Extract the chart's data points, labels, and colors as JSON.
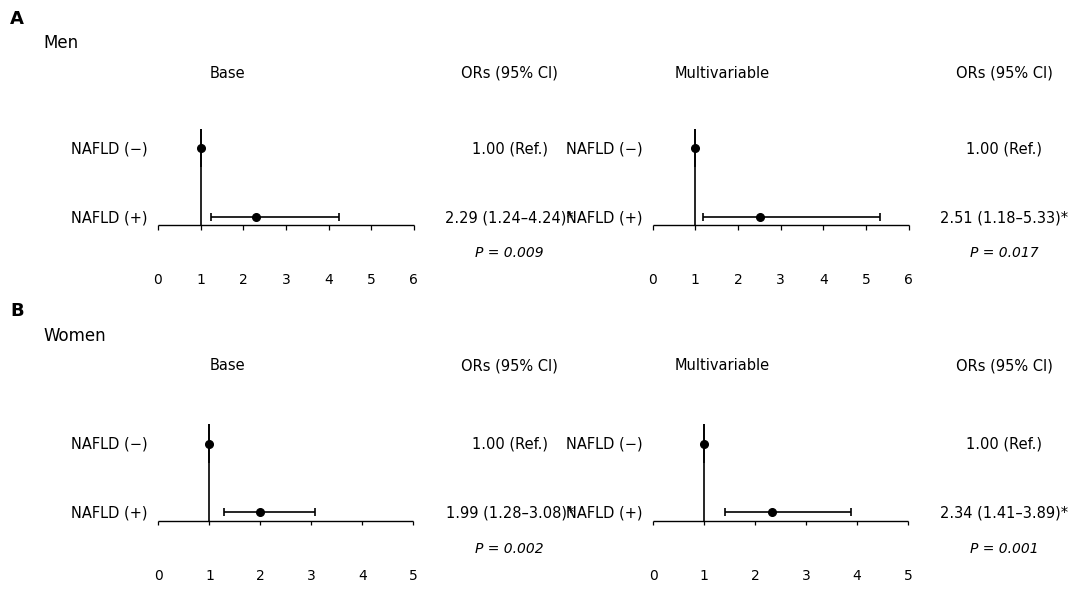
{
  "panels": [
    {
      "panel_label": "A",
      "group_label": "Men",
      "subplots": [
        {
          "model": "Base",
          "or_label": "ORs (95% CI)",
          "xlim": [
            0,
            6
          ],
          "xticks": [
            0,
            1,
            2,
            3,
            4,
            5,
            6
          ],
          "rows": [
            {
              "label": "NAFLD (−)",
              "or": 1.0,
              "ci_lo": 1.0,
              "ci_hi": 1.0,
              "text": "1.00 (Ref.)",
              "ref": true
            },
            {
              "label": "NAFLD (+)",
              "or": 2.29,
              "ci_lo": 1.24,
              "ci_hi": 4.24,
              "text": "2.29 (1.24–4.24)*",
              "ref": false
            }
          ],
          "pvalue": "P = 0.009"
        },
        {
          "model": "Multivariable",
          "or_label": "ORs (95% CI)",
          "xlim": [
            0,
            6
          ],
          "xticks": [
            0,
            1,
            2,
            3,
            4,
            5,
            6
          ],
          "rows": [
            {
              "label": "NAFLD (−)",
              "or": 1.0,
              "ci_lo": 1.0,
              "ci_hi": 1.0,
              "text": "1.00 (Ref.)",
              "ref": true
            },
            {
              "label": "NAFLD (+)",
              "or": 2.51,
              "ci_lo": 1.18,
              "ci_hi": 5.33,
              "text": "2.51 (1.18–5.33)*",
              "ref": false
            }
          ],
          "pvalue": "P = 0.017"
        }
      ]
    },
    {
      "panel_label": "B",
      "group_label": "Women",
      "subplots": [
        {
          "model": "Base",
          "or_label": "ORs (95% CI)",
          "xlim": [
            0,
            5
          ],
          "xticks": [
            0,
            1,
            2,
            3,
            4,
            5
          ],
          "rows": [
            {
              "label": "NAFLD (−)",
              "or": 1.0,
              "ci_lo": 1.0,
              "ci_hi": 1.0,
              "text": "1.00 (Ref.)",
              "ref": true
            },
            {
              "label": "NAFLD (+)",
              "or": 1.99,
              "ci_lo": 1.28,
              "ci_hi": 3.08,
              "text": "1.99 (1.28–3.08)*",
              "ref": false
            }
          ],
          "pvalue": "P = 0.002"
        },
        {
          "model": "Multivariable",
          "or_label": "ORs (95% CI)",
          "xlim": [
            0,
            5
          ],
          "xticks": [
            0,
            1,
            2,
            3,
            4,
            5
          ],
          "rows": [
            {
              "label": "NAFLD (−)",
              "or": 1.0,
              "ci_lo": 1.0,
              "ci_hi": 1.0,
              "text": "1.00 (Ref.)",
              "ref": true
            },
            {
              "label": "NAFLD (+)",
              "or": 2.34,
              "ci_lo": 1.41,
              "ci_hi": 3.89,
              "text": "2.34 (1.41–3.89)*",
              "ref": false
            }
          ],
          "pvalue": "P = 0.001"
        }
      ]
    }
  ],
  "font_family": "Arial",
  "label_fontsize": 10.5,
  "tick_fontsize": 10,
  "header_fontsize": 10.5,
  "pvalue_fontsize": 10,
  "panel_label_fontsize": 13,
  "group_label_fontsize": 12,
  "marker_size": 5.5,
  "line_color": "black",
  "marker_color": "black",
  "background_color": "white"
}
